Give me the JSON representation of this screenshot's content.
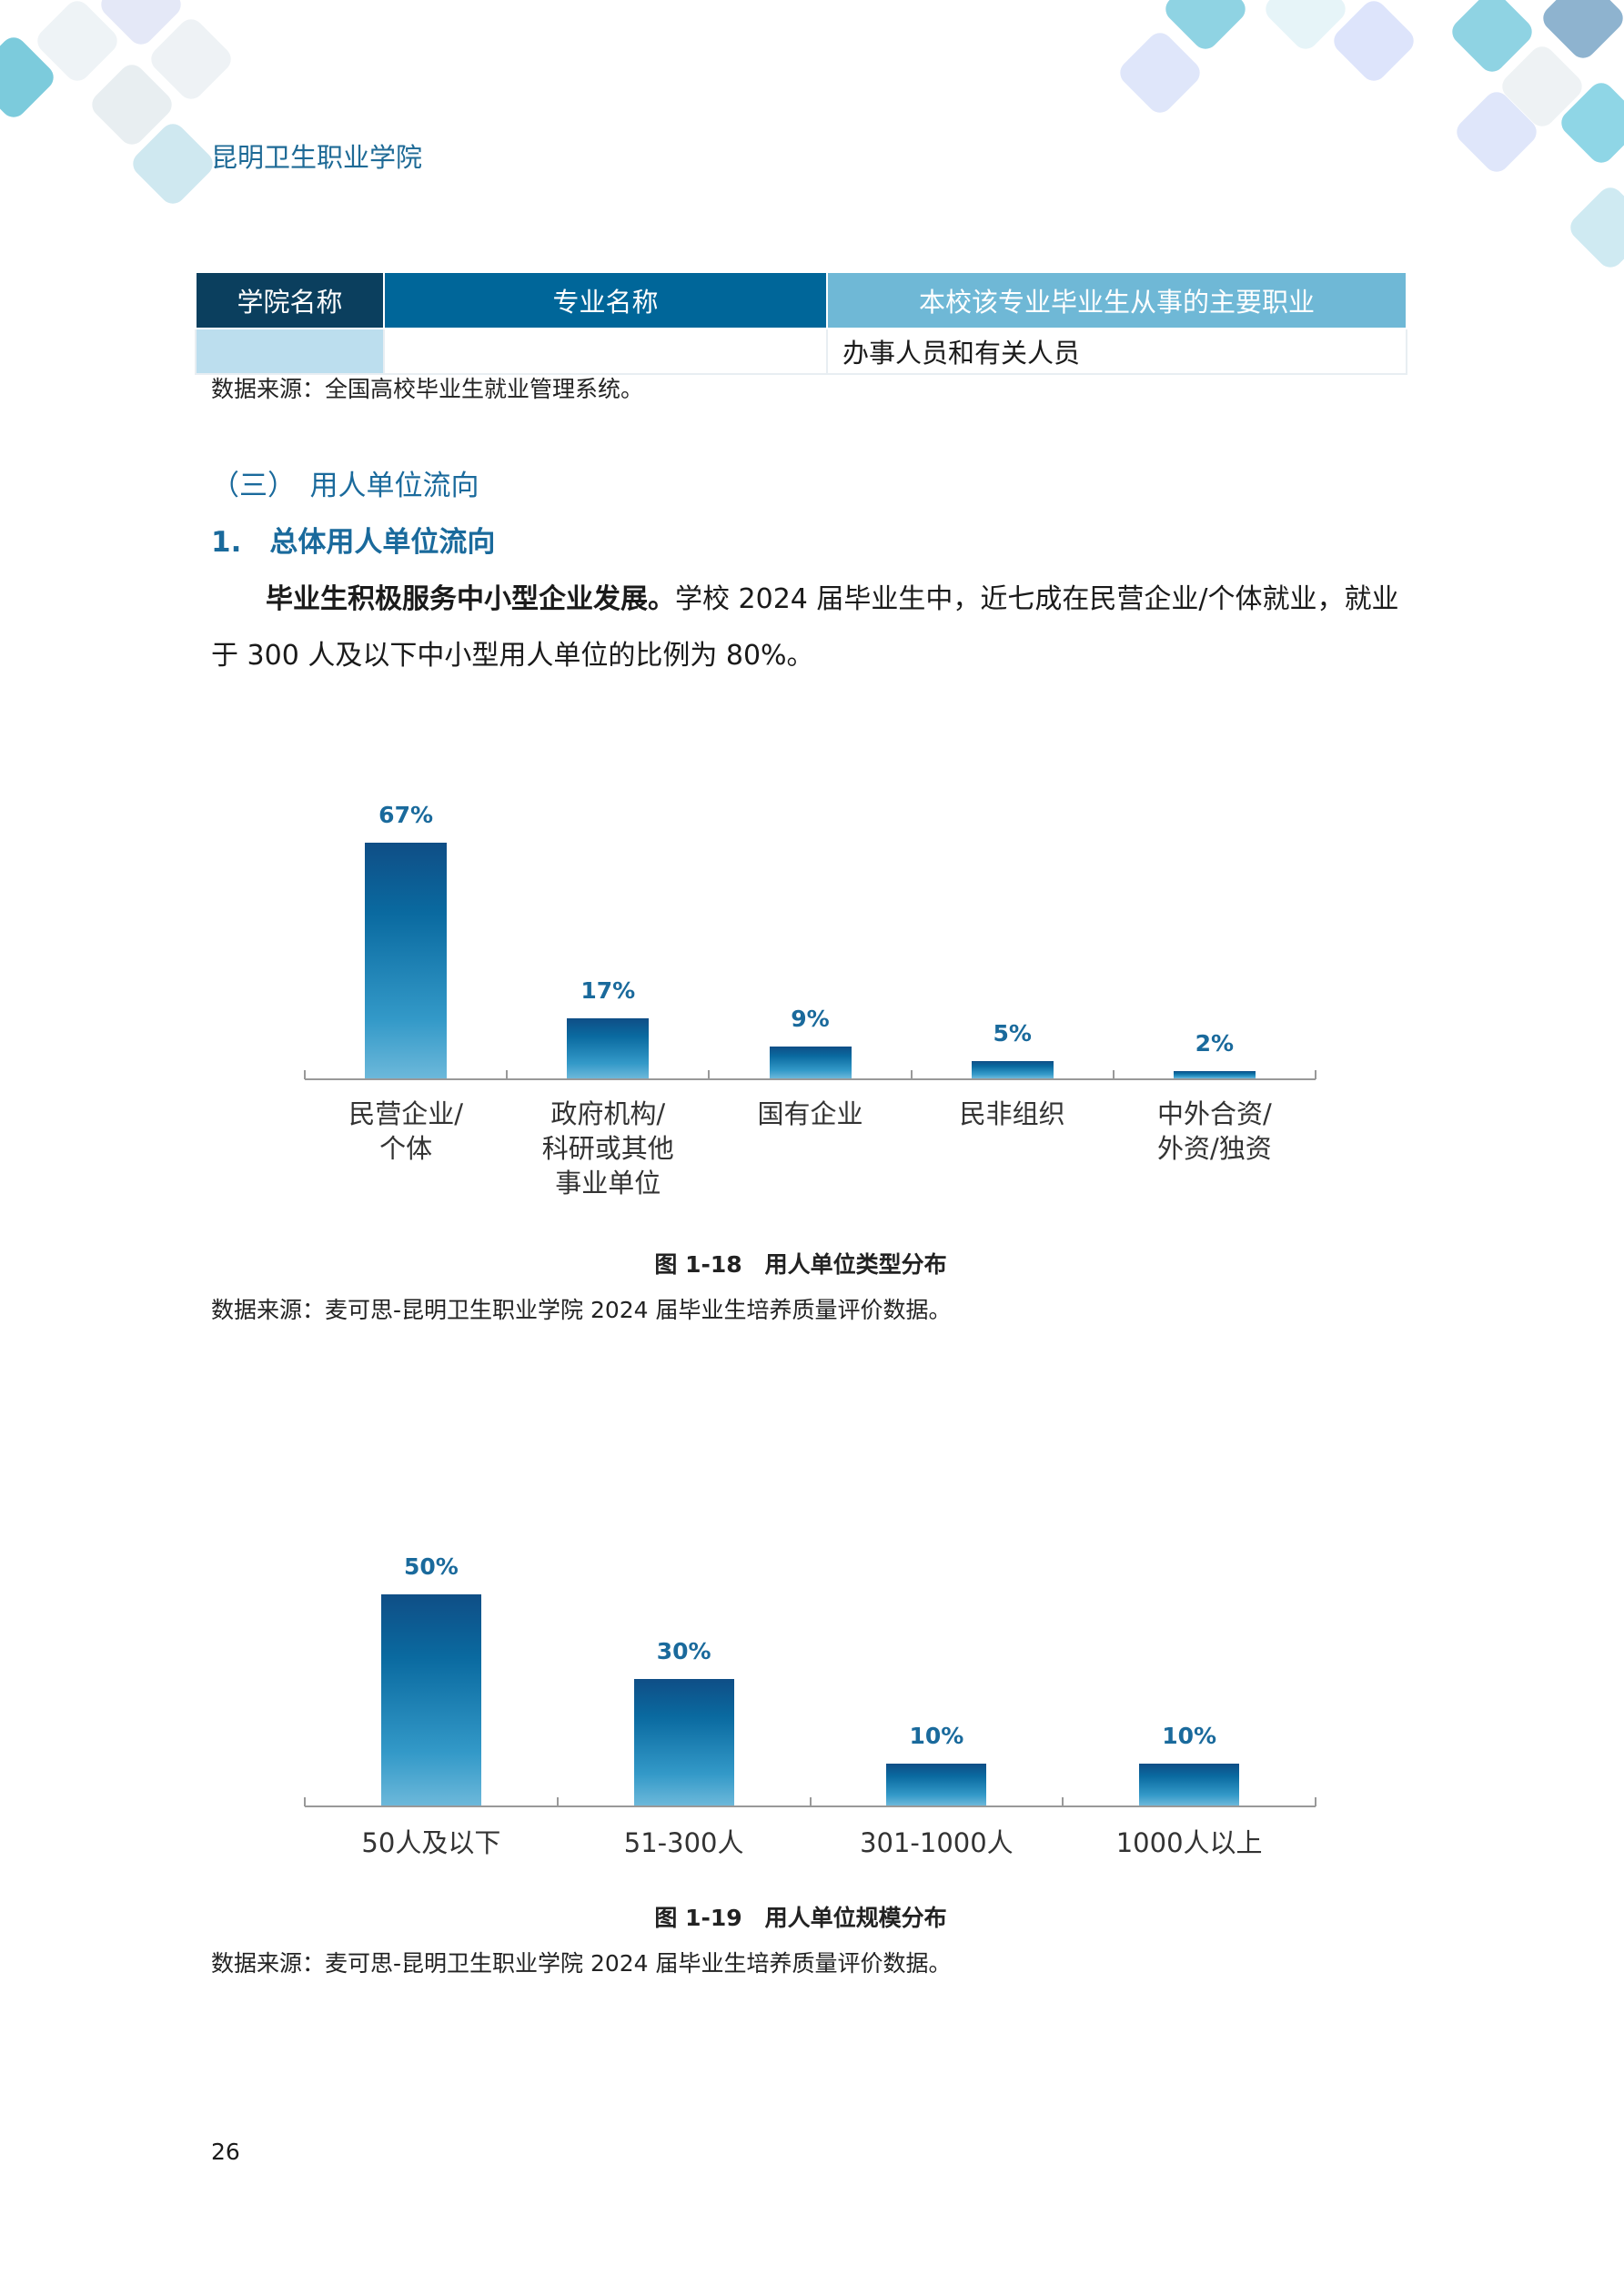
{
  "header": {
    "school": "昆明卫生职业学院"
  },
  "table": {
    "headers": [
      "学院名称",
      "专业名称",
      "本校该专业毕业生从事的主要职业"
    ],
    "rows": [
      [
        "",
        "",
        "办事人员和有关人员"
      ]
    ],
    "source": "数据来源：全国高校毕业生就业管理系统。",
    "colors": {
      "col1": "#0b3f5e",
      "col2": "#006699",
      "col3": "#6fb8d6",
      "cell1": "#bcdeee"
    }
  },
  "section": {
    "heading": "（三）　用人单位流向",
    "subheading": "1.　总体用人单位流向"
  },
  "paragraph": {
    "bold": "毕业生积极服务中小型企业发展。",
    "text": "学校 2024 届毕业生中，近七成在民营企业/个体就业，就业于 300 人及以下中小型用人单位的比例为 80%。"
  },
  "chart_data": [
    {
      "type": "bar",
      "categories": [
        "民营企业/\n个体",
        "政府机构/\n科研或其他\n事业单位",
        "国有企业",
        "民非组织",
        "中外合资/\n外资/独资"
      ],
      "values": [
        67,
        17,
        9,
        5,
        2
      ],
      "value_labels": [
        "67%",
        "17%",
        "9%",
        "5%",
        "2%"
      ],
      "caption": "图 1-18　用人单位类型分布",
      "source": "数据来源：麦可思-昆明卫生职业学院 2024 届毕业生培养质量评价数据。",
      "unit": "%"
    },
    {
      "type": "bar",
      "categories": [
        "50人及以下",
        "51-300人",
        "301-1000人",
        "1000人以上"
      ],
      "values": [
        50,
        30,
        10,
        10
      ],
      "value_labels": [
        "50%",
        "30%",
        "10%",
        "10%"
      ],
      "caption": "图 1-19　用人单位规模分布",
      "source": "数据来源：麦可思-昆明卫生职业学院 2024 届毕业生培养质量评价数据。",
      "unit": "%"
    }
  ],
  "footer": {
    "page_number": "26"
  }
}
